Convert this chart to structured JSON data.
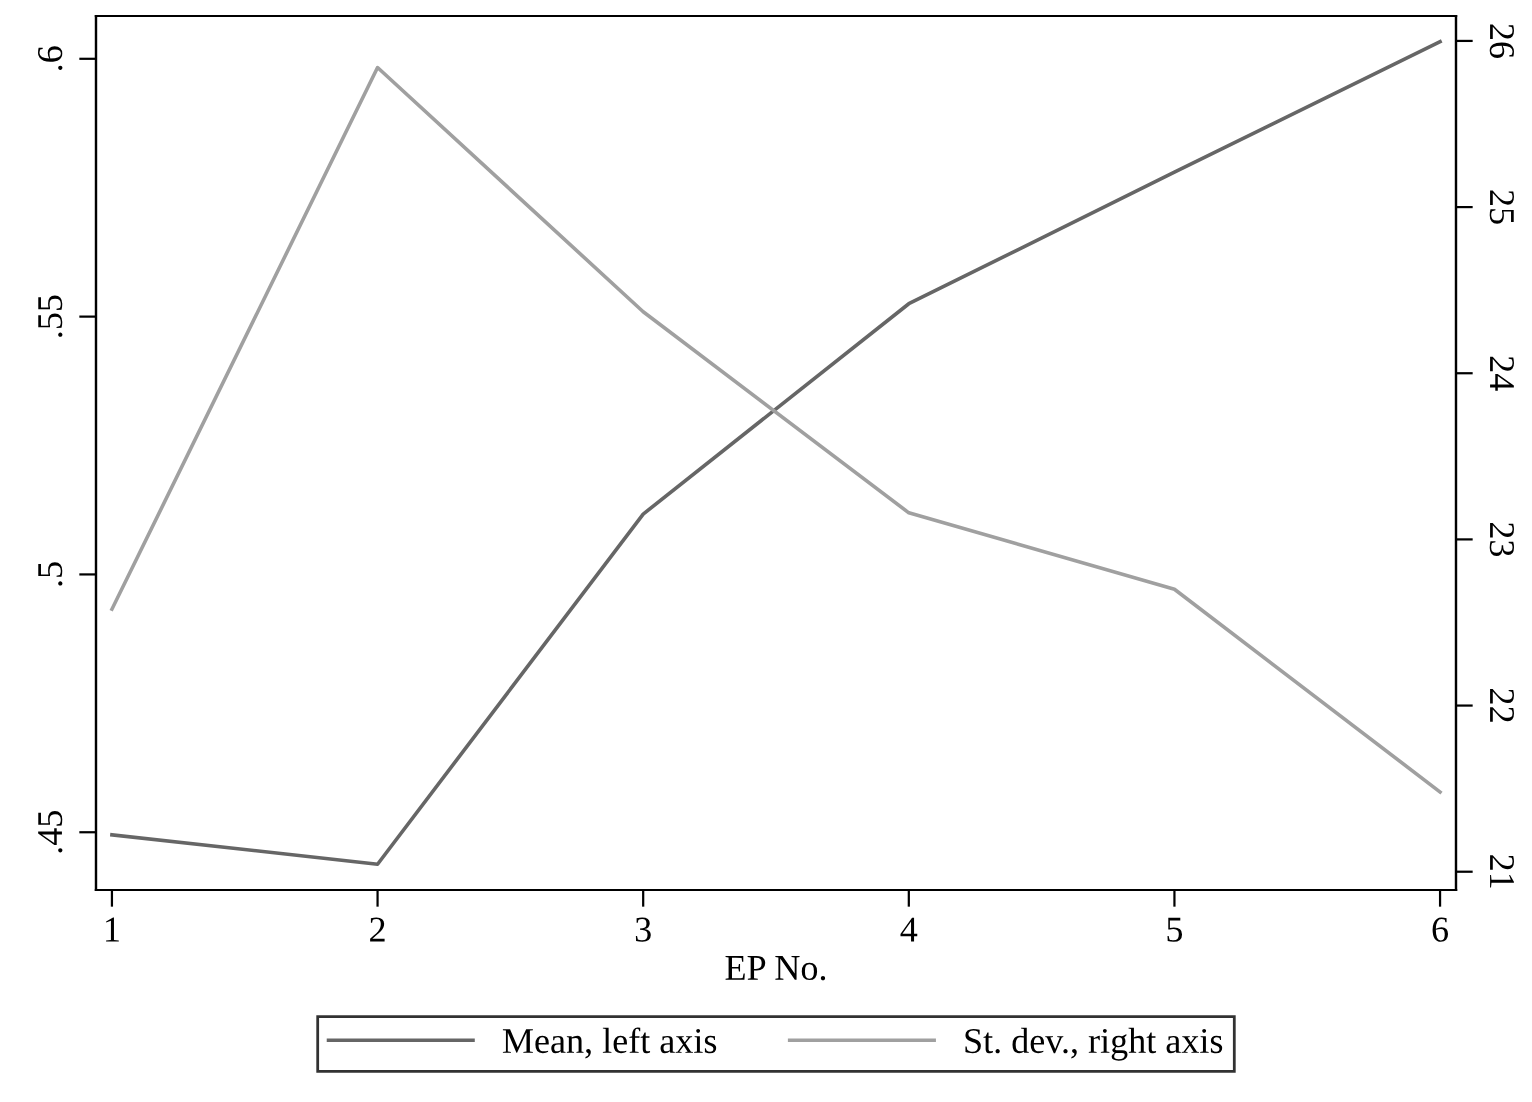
{
  "chart_data": {
    "type": "line",
    "xlabel": "EP No.",
    "x": [
      1,
      2,
      3,
      4,
      5,
      6
    ],
    "series": [
      {
        "name": "Mean, left axis",
        "color": "#666666",
        "values": [
          0.4495,
          0.4438,
          0.5117,
          0.5525,
          0.578,
          0.6033
        ]
      },
      {
        "name": "St. dev., right axis",
        "color": "#a0a0a0",
        "axis": "y2",
        "values": [
          22.58,
          25.84,
          24.37,
          23.16,
          22.7,
          21.48
        ]
      }
    ],
    "xlim": [
      0.94,
      6.06
    ],
    "xticks": [
      1,
      2,
      3,
      4,
      5,
      6
    ],
    "ylim": [
      0.4388,
      0.6083
    ],
    "yticks": [
      {
        "value": 0.45,
        "label": ".45"
      },
      {
        "value": 0.5,
        "label": ".5"
      },
      {
        "value": 0.55,
        "label": ".55"
      },
      {
        "value": 0.6,
        "label": ".6"
      }
    ],
    "y2lim": [
      20.89,
      26.15
    ],
    "y2ticks": [
      21,
      22,
      23,
      24,
      25,
      26
    ],
    "grid": false,
    "legend": "bottom",
    "marker": "none",
    "line_style": "solid"
  }
}
